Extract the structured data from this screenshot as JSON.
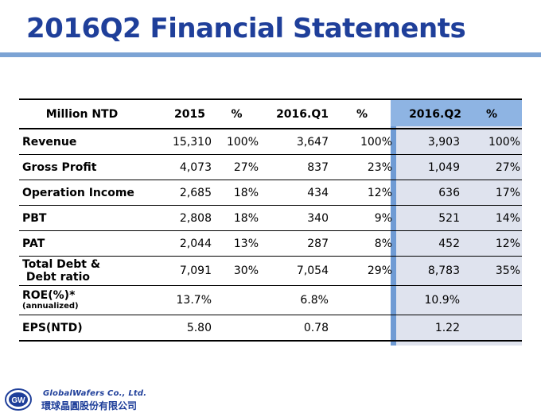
{
  "slide": {
    "title": "2016Q2 Financial Statements"
  },
  "table": {
    "headers": [
      "Million NTD",
      "2015",
      "%",
      "2016.Q1",
      "%",
      "2016.Q2",
      "%"
    ],
    "rows": [
      {
        "label": "Revenue",
        "values": [
          "15,310",
          "100%",
          "3,647",
          "100%",
          "3,903",
          "100%"
        ]
      },
      {
        "label": "Gross Profit",
        "values": [
          "4,073",
          "27%",
          "837",
          "23%",
          "1,049",
          "27%"
        ]
      },
      {
        "label": "Operation Income",
        "values": [
          "2,685",
          "18%",
          "434",
          "12%",
          "636",
          "17%"
        ]
      },
      {
        "label": "PBT",
        "values": [
          "2,808",
          "18%",
          "340",
          "9%",
          "521",
          "14%"
        ]
      },
      {
        "label": "PAT",
        "values": [
          "2,044",
          "13%",
          "287",
          "8%",
          "452",
          "12%"
        ]
      },
      {
        "label_line1": "Total Debt &",
        "label_line2": " Debt ratio",
        "values": [
          "7,091",
          "30%",
          "7,054",
          "29%",
          "8,783",
          "35%"
        ]
      },
      {
        "label_line1": "ROE(%)*",
        "label_line2": "(annualized)",
        "values": [
          "13.7%",
          "",
          "6.8%",
          "",
          "10.9%",
          ""
        ]
      },
      {
        "label": "EPS(NTD)",
        "values": [
          "5.80",
          "",
          "0.78",
          "",
          "1.22",
          ""
        ]
      }
    ]
  },
  "logo": {
    "company_en": "GlobalWafers Co., Ltd.",
    "company_zh": "環球晶圓股份有限公司",
    "mark_text": "GW"
  },
  "colors": {
    "title": "#1f3f9a",
    "rule": "#7ca3d4",
    "highlight_header": "#8eb4e3",
    "highlight_body": "#dfe3ee"
  }
}
